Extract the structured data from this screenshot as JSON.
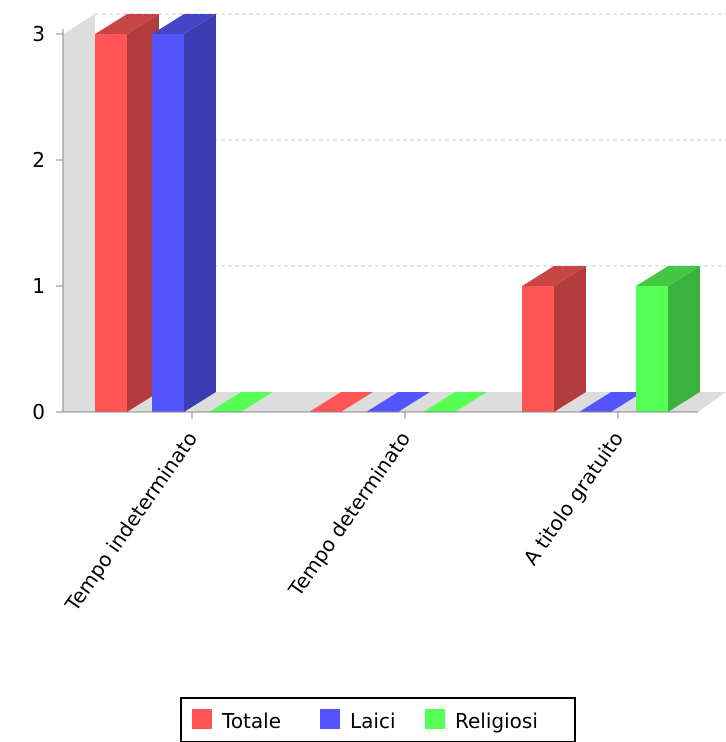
{
  "chart_data": {
    "type": "bar",
    "categories": [
      "Tempo indeterminato",
      "Tempo determinato",
      "A titolo gratuito"
    ],
    "series": [
      {
        "name": "Totale",
        "values": [
          3,
          0,
          1
        ],
        "color": "#ff5555",
        "side_color": "#b23b3b",
        "top_color": "#c74545"
      },
      {
        "name": "Laici",
        "values": [
          3,
          0,
          0
        ],
        "color": "#5555ff",
        "side_color": "#3b3bb2",
        "top_color": "#4545c7"
      },
      {
        "name": "Religiosi",
        "values": [
          0,
          0,
          1
        ],
        "color": "#55ff55",
        "side_color": "#3bb23b",
        "top_color": "#45c745"
      }
    ],
    "yticks": [
      "0",
      "1",
      "2",
      "3"
    ],
    "ylim": [
      0,
      3
    ],
    "grid": true,
    "three_d": true,
    "legend_position": "bottom"
  }
}
